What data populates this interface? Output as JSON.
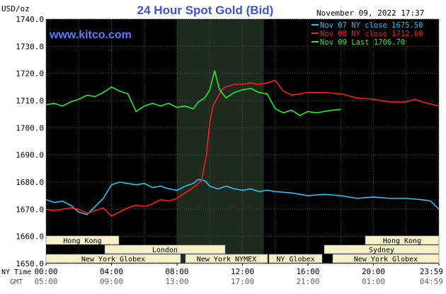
{
  "header": {
    "unit": "USD/oz",
    "title": "24 Hour Spot Gold (Bid)",
    "timestamp": "November 09, 2022 17:37",
    "watermark": "www.kitco.com"
  },
  "colors": {
    "background": "#000000",
    "grid": "#4a4a4a",
    "highlight_band": "#1f2a1f",
    "title": "#3a56d4",
    "watermark": "#5b7cff",
    "axis_text": "#dddddd",
    "market_bar": "#f5f0c8",
    "cyan": "#22c4f0",
    "red": "#ff1a1a",
    "green": "#22ee22"
  },
  "x_axis": {
    "row_labels": [
      "NY Time",
      "GMT"
    ],
    "ny_ticks": [
      "00:00",
      "04:00",
      "08:00",
      "12:00",
      "16:00",
      "20:00",
      "23:59"
    ],
    "gmt_ticks": [
      "05:00",
      "09:00",
      "13:00",
      "17:00",
      "21:00",
      "01:00",
      "04:59"
    ]
  },
  "markets": {
    "row1": [
      "Hong Kong",
      "Hong Kong"
    ],
    "row2": [
      "London",
      "Sydney"
    ],
    "row3": [
      "New York Globex",
      "New York NYMEX",
      "NY Globex",
      "New York Globex"
    ]
  },
  "chart_data": {
    "type": "line",
    "title": "24 Hour Spot Gold (Bid)",
    "ylabel": "USD/oz",
    "ylim": [
      1650,
      1740
    ],
    "yticks": [
      "1650.0",
      "1660.0",
      "1670.0",
      "1680.0",
      "1690.0",
      "1700.0",
      "1710.0",
      "1720.0",
      "1730.0",
      "1740.0"
    ],
    "xlim": [
      0,
      24
    ],
    "xtick_labels": [
      "00:00",
      "04:00",
      "08:00",
      "12:00",
      "16:00",
      "20:00",
      "23:59"
    ],
    "grid": true,
    "legend_position": "top-right",
    "legend": [
      "Nov 07 NY close 1675.50",
      "Nov 08 NY close 1712.60",
      "Nov 09 Last 1706.70"
    ],
    "series": [
      {
        "name": "Nov 07 NY close 1675.50",
        "color": "#22c4f0",
        "x": [
          0,
          0.5,
          1,
          1.5,
          2,
          2.5,
          3,
          3.5,
          4,
          4.5,
          5,
          5.5,
          6,
          6.5,
          7,
          7.5,
          8,
          8.5,
          9,
          9.3,
          9.7,
          10,
          10.5,
          11,
          11.5,
          12,
          12.5,
          13,
          13.5,
          14,
          15,
          16,
          17,
          18,
          19,
          20,
          21,
          22,
          23,
          23.5,
          24
        ],
        "y": [
          1673.5,
          1672.5,
          1673.0,
          1671.5,
          1669.0,
          1668.0,
          1671.0,
          1674.0,
          1679.0,
          1680.0,
          1679.5,
          1679.0,
          1679.5,
          1678.0,
          1678.5,
          1677.5,
          1677.0,
          1678.5,
          1679.5,
          1681.0,
          1680.5,
          1678.5,
          1677.5,
          1678.5,
          1677.5,
          1677.0,
          1677.5,
          1676.5,
          1677.0,
          1676.5,
          1676.0,
          1675.0,
          1675.5,
          1675.0,
          1674.0,
          1674.5,
          1674.0,
          1674.0,
          1673.5,
          1673.0,
          1670.0
        ]
      },
      {
        "name": "Nov 08 NY close 1712.60",
        "color": "#ff1a1a",
        "x": [
          0,
          0.5,
          1,
          1.5,
          2,
          2.5,
          3,
          3.5,
          4,
          4.5,
          5,
          5.5,
          6,
          6.5,
          7,
          7.5,
          8,
          8.5,
          9,
          9.5,
          9.8,
          10.0,
          10.2,
          10.5,
          10.8,
          11,
          11.5,
          12,
          12.5,
          13,
          13.5,
          14,
          14.5,
          15,
          16,
          17,
          18,
          19,
          20,
          21,
          22,
          22.5,
          23,
          24
        ],
        "y": [
          1670.0,
          1669.5,
          1670.0,
          1670.5,
          1670.0,
          1668.5,
          1669.5,
          1670.5,
          1667.5,
          1669.0,
          1670.5,
          1671.5,
          1671.0,
          1672.0,
          1673.5,
          1673.0,
          1674.0,
          1676.0,
          1678.0,
          1680.5,
          1690.0,
          1702.0,
          1708.0,
          1711.5,
          1714.5,
          1715.0,
          1716.0,
          1716.0,
          1716.5,
          1716.0,
          1716.5,
          1717.5,
          1713.5,
          1712.0,
          1713.0,
          1713.0,
          1712.5,
          1711.0,
          1710.5,
          1709.5,
          1709.5,
          1710.5,
          1709.5,
          1708.0
        ]
      },
      {
        "name": "Nov 09 Last 1706.70",
        "color": "#22ee22",
        "x": [
          0,
          0.5,
          1,
          1.5,
          2,
          2.5,
          3,
          3.5,
          4,
          4.5,
          5,
          5.5,
          6,
          6.5,
          7,
          7.5,
          8,
          8.5,
          9,
          9.3,
          9.7,
          10.0,
          10.3,
          10.6,
          11,
          11.5,
          12,
          12.5,
          13,
          13.5,
          14,
          14.5,
          15,
          15.5,
          16,
          16.5,
          17,
          17.5,
          18
        ],
        "y": [
          1708.5,
          1709.0,
          1708.0,
          1709.5,
          1710.5,
          1712.0,
          1711.5,
          1713.0,
          1715.0,
          1713.5,
          1712.5,
          1706.0,
          1708.0,
          1709.0,
          1708.0,
          1709.0,
          1707.5,
          1708.0,
          1707.0,
          1709.5,
          1711.0,
          1714.0,
          1721.0,
          1714.0,
          1711.0,
          1713.0,
          1714.0,
          1714.5,
          1713.0,
          1712.5,
          1707.0,
          1705.5,
          1706.5,
          1704.5,
          1706.0,
          1705.5,
          1706.0,
          1706.5,
          1706.7
        ]
      }
    ]
  }
}
